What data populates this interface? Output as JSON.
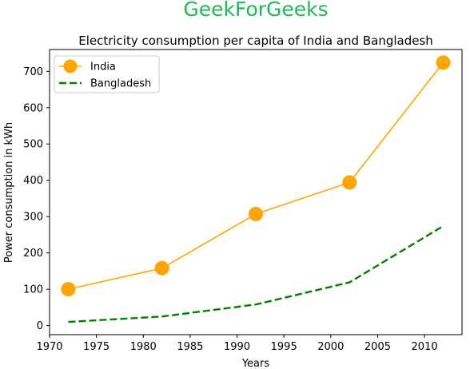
{
  "chart_data": {
    "type": "line",
    "suptitle": "GeekForGeeks",
    "title": "Electricity consumption per capita of India and Bangladesh",
    "xlabel": "Years",
    "ylabel": "Power consumption in kWh",
    "xlim": [
      1970,
      2014
    ],
    "ylim": [
      -25,
      760
    ],
    "xticks": [
      1970,
      1975,
      1980,
      1985,
      1990,
      1995,
      2000,
      2005,
      2010
    ],
    "yticks": [
      0,
      100,
      200,
      300,
      400,
      500,
      600,
      700
    ],
    "grid": false,
    "legend_position": "top-left",
    "x": [
      1972,
      1982,
      1992,
      2002,
      2012
    ],
    "series": [
      {
        "name": "India",
        "values": [
          100,
          158,
          307,
          394,
          724
        ],
        "color": "#FFA500",
        "style": "solid",
        "marker": "circle"
      },
      {
        "name": "Bangladesh",
        "values": [
          10,
          25,
          58,
          119,
          274
        ],
        "color": "#008000",
        "style": "dashed",
        "marker": "none"
      }
    ],
    "suptitle_color": "#1DB954"
  }
}
